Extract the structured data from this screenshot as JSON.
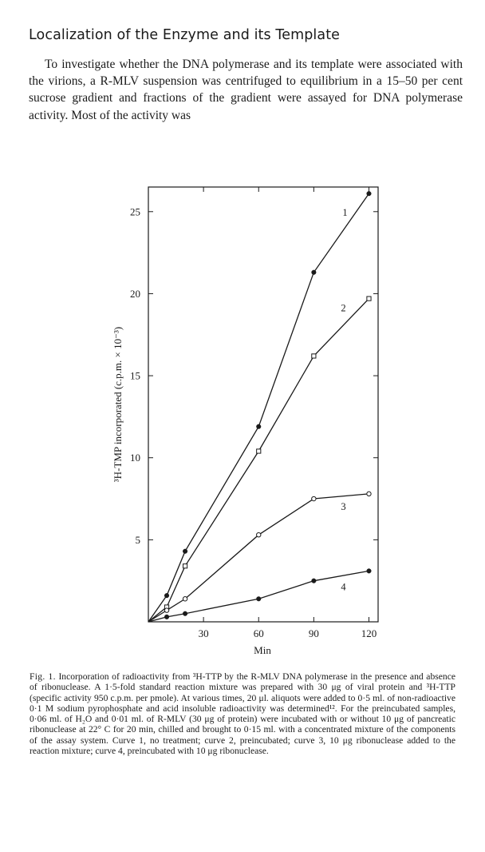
{
  "section": {
    "heading": "Localization of the Enzyme and its Template",
    "paragraph": "To investigate whether the DNA polymerase and its template were associated with the virions, a R-MLV suspension was centrifuged to equilibrium in a 15–50 per cent sucrose gradient and fractions of the gradient were assayed for DNA polymerase activity. Most of the activity was"
  },
  "chart_data": {
    "type": "line",
    "xlabel": "Min",
    "ylabel": "³H-TMP incorporated (c.p.m. × 10⁻³)",
    "x_ticks": [
      30,
      60,
      90,
      120
    ],
    "y_ticks": [
      5,
      10,
      15,
      20,
      25
    ],
    "xlim": [
      0,
      125
    ],
    "ylim": [
      0,
      26.5
    ],
    "series": [
      {
        "name": "1",
        "marker": "filled-circle",
        "x": [
          0,
          10,
          20,
          60,
          90,
          120
        ],
        "y": [
          0,
          1.6,
          4.3,
          11.9,
          21.3,
          26.1
        ]
      },
      {
        "name": "2",
        "marker": "open-square",
        "x": [
          0,
          10,
          20,
          60,
          90,
          120
        ],
        "y": [
          0,
          0.9,
          3.4,
          10.4,
          16.2,
          19.7
        ]
      },
      {
        "name": "3",
        "marker": "open-circle",
        "x": [
          0,
          10,
          20,
          60,
          90,
          120
        ],
        "y": [
          0,
          0.7,
          1.4,
          5.3,
          7.5,
          7.8
        ]
      },
      {
        "name": "4",
        "marker": "filled-circle",
        "x": [
          0,
          10,
          20,
          60,
          90,
          120
        ],
        "y": [
          0,
          0.3,
          0.5,
          1.4,
          2.5,
          3.1
        ]
      }
    ]
  },
  "caption": {
    "lead": "Fig. 1.",
    "text": "Incorporation of radioactivity from ³H-TTP by the R-MLV DNA polymerase in the presence and absence of ribonuclease. A 1·5-fold standard reaction mixture was prepared with 30 μg of viral protein and ³H-TTP (specific activity 950 c.p.m. per pmole). At various times, 20 μl. aliquots were added to 0·5 ml. of non-radioactive 0·1 M sodium pyrophosphate and acid insoluble radioactivity was determined¹². For the preincubated samples, 0·06 ml. of H₂O and 0·01 ml. of R-MLV (30 μg of protein) were incubated with or without 10 μg of pancreatic ribonuclease at 22° C for 20 min, chilled and brought to 0·15 ml. with a concentrated mixture of the components of the assay system. Curve 1, no treatment; curve 2, preincubated; curve 3, 10 μg ribonuclease added to the reaction mixture; curve 4, preincubated with 10 μg ribonuclease."
  }
}
